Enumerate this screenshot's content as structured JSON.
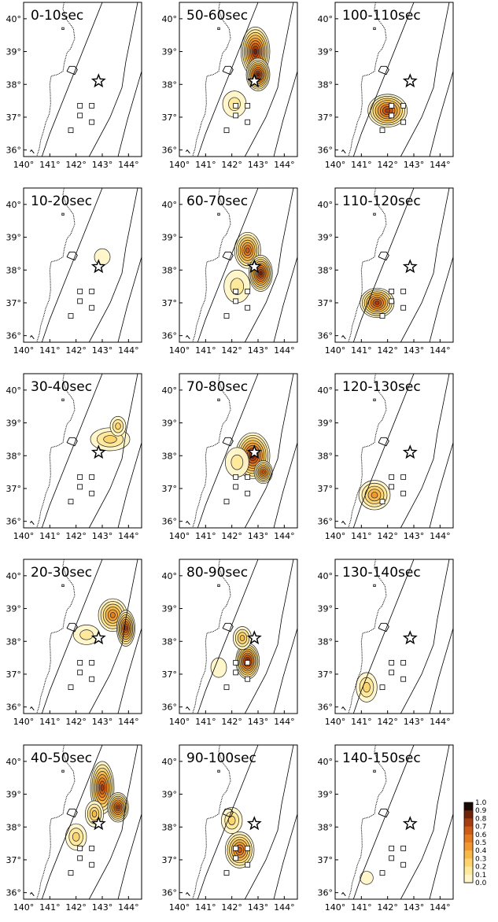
{
  "figure": {
    "lon_ticks": [
      "140°",
      "141°",
      "142°",
      "143°",
      "144°"
    ],
    "lat_ticks": [
      "40°",
      "39°",
      "38°",
      "37°",
      "36°"
    ],
    "lon_range": [
      140,
      144.5
    ],
    "lat_range": [
      35.8,
      40.5
    ],
    "epicenter": {
      "lon": 142.86,
      "lat": 38.1
    },
    "colorbar": {
      "ticks": [
        "1.0",
        "0.9",
        "0.8",
        "0.7",
        "0.6",
        "0.5",
        "0.4",
        "0.3",
        "0.2",
        "0.1",
        "0.0"
      ],
      "range": [
        0.0,
        1.0
      ],
      "colors": [
        "#fffef8",
        "#fff6c8",
        "#ffe89a",
        "#fcd36c",
        "#f7b84a",
        "#f0982f",
        "#e37a20",
        "#cd5a15",
        "#a73c0e",
        "#6e2208",
        "#1a0a05"
      ]
    },
    "stations": [
      {
        "lon": 142.15,
        "lat": 37.35
      },
      {
        "lon": 142.6,
        "lat": 37.35
      },
      {
        "lon": 142.15,
        "lat": 37.05
      },
      {
        "lon": 142.6,
        "lat": 36.85
      },
      {
        "lon": 141.8,
        "lat": 36.6
      },
      {
        "lon": 141.5,
        "lat": 39.7
      }
    ]
  },
  "panels": [
    {
      "label": "0-10sec",
      "blobs": []
    },
    {
      "label": "50-60sec",
      "blobs": [
        {
          "lon": 142.9,
          "lat": 39.0,
          "rx": 0.55,
          "ry": 0.75,
          "peak": 0.9
        },
        {
          "lon": 143.0,
          "lat": 38.3,
          "rx": 0.45,
          "ry": 0.5,
          "peak": 0.85
        },
        {
          "lon": 142.1,
          "lat": 37.4,
          "rx": 0.45,
          "ry": 0.4,
          "peak": 0.2
        }
      ]
    },
    {
      "label": "100-110sec",
      "blobs": [
        {
          "lon": 142.0,
          "lat": 37.2,
          "rx": 0.75,
          "ry": 0.5,
          "peak": 0.8
        }
      ]
    },
    {
      "label": "10-20sec",
      "blobs": [
        {
          "lon": 143.0,
          "lat": 38.4,
          "rx": 0.3,
          "ry": 0.25,
          "peak": 0.1
        }
      ]
    },
    {
      "label": "60-70sec",
      "blobs": [
        {
          "lon": 142.6,
          "lat": 38.6,
          "rx": 0.5,
          "ry": 0.55,
          "peak": 0.7
        },
        {
          "lon": 143.1,
          "lat": 37.9,
          "rx": 0.45,
          "ry": 0.55,
          "peak": 0.85
        },
        {
          "lon": 142.2,
          "lat": 37.5,
          "rx": 0.5,
          "ry": 0.5,
          "peak": 0.2
        }
      ]
    },
    {
      "label": "110-120sec",
      "blobs": [
        {
          "lon": 141.6,
          "lat": 37.0,
          "rx": 0.65,
          "ry": 0.45,
          "peak": 0.75
        }
      ]
    },
    {
      "label": "30-40sec",
      "blobs": [
        {
          "lon": 143.3,
          "lat": 38.5,
          "rx": 0.75,
          "ry": 0.35,
          "peak": 0.3
        },
        {
          "lon": 143.6,
          "lat": 38.9,
          "rx": 0.3,
          "ry": 0.3,
          "peak": 0.3
        }
      ]
    },
    {
      "label": "70-80sec",
      "blobs": [
        {
          "lon": 142.8,
          "lat": 38.0,
          "rx": 0.65,
          "ry": 0.7,
          "peak": 0.85
        },
        {
          "lon": 143.2,
          "lat": 37.5,
          "rx": 0.35,
          "ry": 0.35,
          "peak": 0.7
        },
        {
          "lon": 142.2,
          "lat": 37.8,
          "rx": 0.45,
          "ry": 0.45,
          "peak": 0.15
        }
      ]
    },
    {
      "label": "120-130sec",
      "blobs": [
        {
          "lon": 141.5,
          "lat": 36.8,
          "rx": 0.6,
          "ry": 0.45,
          "peak": 0.5
        }
      ]
    },
    {
      "label": "20-30sec",
      "blobs": [
        {
          "lon": 143.4,
          "lat": 38.8,
          "rx": 0.55,
          "ry": 0.5,
          "peak": 0.6
        },
        {
          "lon": 143.9,
          "lat": 38.4,
          "rx": 0.35,
          "ry": 0.55,
          "peak": 0.8
        },
        {
          "lon": 142.4,
          "lat": 38.2,
          "rx": 0.5,
          "ry": 0.3,
          "peak": 0.2
        }
      ]
    },
    {
      "label": "80-90sec",
      "blobs": [
        {
          "lon": 142.6,
          "lat": 37.4,
          "rx": 0.45,
          "ry": 0.55,
          "peak": 0.85
        },
        {
          "lon": 142.4,
          "lat": 38.1,
          "rx": 0.35,
          "ry": 0.35,
          "peak": 0.35
        },
        {
          "lon": 141.5,
          "lat": 37.2,
          "rx": 0.3,
          "ry": 0.3,
          "peak": 0.1
        }
      ]
    },
    {
      "label": "130-140sec",
      "blobs": [
        {
          "lon": 141.2,
          "lat": 36.6,
          "rx": 0.4,
          "ry": 0.45,
          "peak": 0.3
        }
      ]
    },
    {
      "label": "40-50sec",
      "blobs": [
        {
          "lon": 143.0,
          "lat": 39.2,
          "rx": 0.45,
          "ry": 0.8,
          "peak": 0.8
        },
        {
          "lon": 143.6,
          "lat": 38.6,
          "rx": 0.4,
          "ry": 0.45,
          "peak": 0.8
        },
        {
          "lon": 142.7,
          "lat": 38.4,
          "rx": 0.35,
          "ry": 0.4,
          "peak": 0.4
        },
        {
          "lon": 142.0,
          "lat": 37.7,
          "rx": 0.4,
          "ry": 0.4,
          "peak": 0.25
        }
      ]
    },
    {
      "label": "90-100sec",
      "blobs": [
        {
          "lon": 142.3,
          "lat": 37.3,
          "rx": 0.55,
          "ry": 0.55,
          "peak": 0.7
        },
        {
          "lon": 142.0,
          "lat": 38.2,
          "rx": 0.4,
          "ry": 0.4,
          "peak": 0.25
        }
      ]
    },
    {
      "label": "140-150sec",
      "blobs": [
        {
          "lon": 141.2,
          "lat": 36.45,
          "rx": 0.25,
          "ry": 0.2,
          "peak": 0.1
        }
      ]
    }
  ]
}
